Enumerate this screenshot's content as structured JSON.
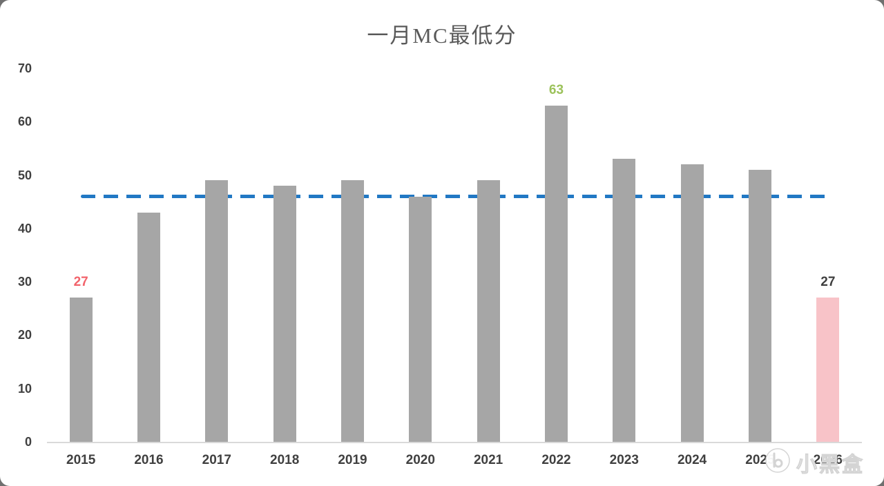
{
  "chart_data": {
    "type": "bar",
    "title": "一月MC最低分",
    "categories": [
      "2015",
      "2016",
      "2017",
      "2018",
      "2019",
      "2020",
      "2021",
      "2022",
      "2023",
      "2024",
      "2025",
      "2026"
    ],
    "values": [
      27,
      43,
      49,
      48,
      49,
      46,
      49,
      63,
      53,
      52,
      51,
      27
    ],
    "xlabel": "",
    "ylabel": "",
    "ylim": [
      0,
      70
    ],
    "yticks": [
      0,
      10,
      20,
      30,
      40,
      50,
      60,
      70
    ],
    "grid": false,
    "legend": "none",
    "bar_colors": [
      "#a6a6a6",
      "#a6a6a6",
      "#a6a6a6",
      "#a6a6a6",
      "#a6a6a6",
      "#a6a6a6",
      "#a6a6a6",
      "#a6a6a6",
      "#a6a6a6",
      "#a6a6a6",
      "#a6a6a6",
      "#f8c3c8"
    ],
    "reference_line": {
      "value": 46,
      "color": "#2178c4",
      "style": "dashed"
    },
    "data_labels": [
      {
        "index": 0,
        "text": "27",
        "color": "#f2636b"
      },
      {
        "index": 7,
        "text": "63",
        "color": "#9cc25b"
      },
      {
        "index": 11,
        "text": "27",
        "color": "#3f3f3f"
      }
    ],
    "colors": {
      "bar_default": "#a6a6a6",
      "bar_highlight": "#f8c3c8",
      "axis_text": "#404040",
      "title_text": "#595959",
      "axis_line": "#d9d9d9"
    }
  },
  "watermark": {
    "text": "小黑盒"
  }
}
